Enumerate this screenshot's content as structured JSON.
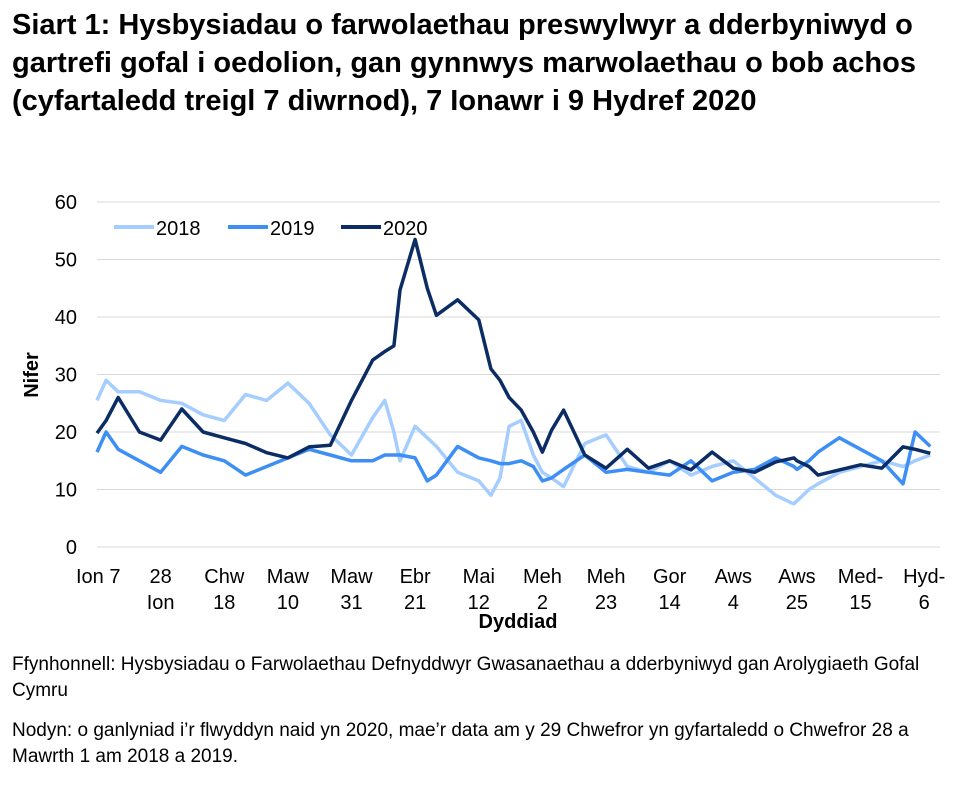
{
  "title": "Siart 1: Hysbysiadau o farwolaethau preswylwyr a dderbyniwyd o gartrefi gofal i oedolion, gan gynnwys marwolaethau o bob achos (cyfartaledd treigl 7 diwrnod), 7 Ionawr i 9 Hydref 2020",
  "source": "Ffynhonnell: Hysbysiadau o Farwolaethau Defnyddwyr Gwasanaethau a dderbyniwyd gan Arolygiaeth Gofal Cymru",
  "note": "Nodyn: o ganlyniad i’r flwyddyn naid yn 2020, mae’r data am y 29 Chwefror yn gyfartaledd o Chwefror 28 a Mawrth 1 am 2018 a 2019.",
  "chart_data": {
    "type": "line",
    "xlabel": "Dyddiad",
    "ylabel": "Nifer",
    "ylim": [
      0,
      60
    ],
    "yticks": [
      0,
      10,
      20,
      30,
      40,
      50,
      60
    ],
    "xlim": [
      "7 Ionawr",
      "9 Hydref"
    ],
    "xticks": [
      [
        "Ion 7",
        ""
      ],
      [
        "28",
        "Ion"
      ],
      [
        "Chw",
        "18"
      ],
      [
        "Maw",
        "10"
      ],
      [
        "Maw",
        "31"
      ],
      [
        "Ebr",
        "21"
      ],
      [
        "Mai",
        "12"
      ],
      [
        "Meh",
        "2"
      ],
      [
        "Meh",
        "23"
      ],
      [
        "Gor",
        "14"
      ],
      [
        "Aws",
        "4"
      ],
      [
        "Aws",
        "25"
      ],
      [
        "Med-",
        "15"
      ],
      [
        "Hyd-",
        "6"
      ]
    ],
    "grid": true,
    "legend": "top-left",
    "x_days_since_jan7": [
      0,
      3,
      7,
      14,
      21,
      28,
      35,
      42,
      49,
      56,
      63,
      70,
      77,
      84,
      91,
      95,
      98,
      100,
      105,
      109,
      112,
      119,
      126,
      130,
      133,
      136,
      140,
      144,
      147,
      150,
      154,
      161,
      168,
      175,
      182,
      189,
      196,
      203,
      210,
      217,
      224,
      230,
      231,
      235,
      238,
      245,
      252,
      259,
      266,
      270,
      275
    ],
    "series": [
      {
        "name": "2018",
        "color": "#a6cdff",
        "values": [
          25.5,
          29,
          27,
          27,
          25.5,
          25,
          23,
          22,
          26.5,
          25.5,
          28.5,
          25,
          19.5,
          16,
          22.5,
          25.5,
          20,
          15,
          21,
          19,
          17.5,
          13,
          11.5,
          9,
          12,
          21,
          22,
          16,
          13,
          12,
          10.5,
          18,
          19.5,
          14,
          13,
          15,
          12.5,
          14,
          15,
          12,
          9,
          7.5,
          8,
          10,
          11,
          13,
          14,
          15,
          14,
          15,
          16
        ]
      },
      {
        "name": "2019",
        "color": "#3d8ef5",
        "values": [
          16.5,
          20,
          17,
          15,
          13,
          17.5,
          16,
          15,
          12.5,
          14,
          15.5,
          17,
          16,
          15,
          15,
          16,
          16,
          16,
          15.5,
          11.5,
          12.5,
          17.5,
          15.5,
          15,
          14.5,
          14.5,
          15,
          14,
          11.5,
          12,
          13.5,
          16,
          13,
          13.5,
          13,
          12.5,
          15,
          11.5,
          13,
          13.5,
          15.5,
          14,
          13.5,
          15,
          16.5,
          19,
          17,
          15,
          11,
          20,
          17.5
        ]
      },
      {
        "name": "2020",
        "color": "#0b2d64",
        "values": [
          19.8,
          22,
          26,
          20,
          18.6,
          24,
          20,
          19,
          18,
          16.4,
          15.5,
          17.4,
          17.7,
          25.5,
          32.5,
          34,
          35,
          44.7,
          53.5,
          45,
          40.3,
          43,
          39.5,
          31,
          29,
          26,
          23.8,
          20,
          16.5,
          20.3,
          23.8,
          16,
          13.7,
          17,
          13.7,
          15,
          13.4,
          16.5,
          13.7,
          13,
          14.8,
          15.5,
          15,
          14,
          12.5,
          13.4,
          14.3,
          13.7,
          17.4,
          17,
          16.3
        ]
      }
    ]
  }
}
